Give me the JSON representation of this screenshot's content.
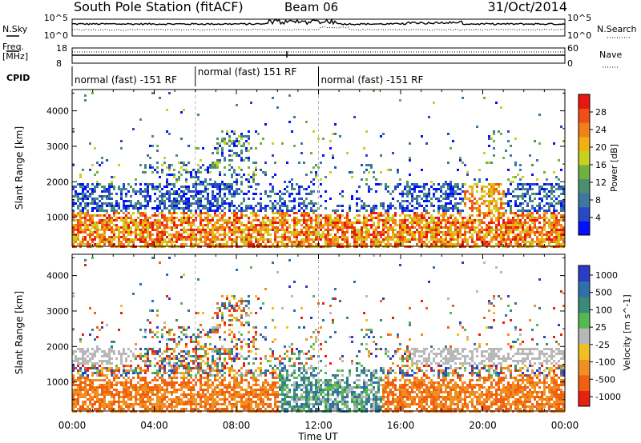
{
  "header": {
    "station": "South Pole Station (fitACF)",
    "beam": "Beam 06",
    "date": "31/Oct/2014"
  },
  "top_panels": {
    "nsky_label": "N.Sky",
    "nsky_ticks": [
      "10^5",
      "10^0"
    ],
    "nsearch_label": "N.Search",
    "nsearch_ticks": [
      "10^5",
      "10^0"
    ],
    "freq_label": "Freq.",
    "freq_unit": "[MHz]",
    "freq_ticks": [
      "18",
      "8"
    ],
    "nave_label": "Nave",
    "nave_ticks": [
      "60",
      "0"
    ],
    "cpid_label": "CPID",
    "cpid_segments": [
      {
        "label": "normal (fast) -151 RF",
        "start_h": 0,
        "end_h": 6
      },
      {
        "label": "normal (fast) 151 RF",
        "start_h": 6,
        "end_h": 12
      },
      {
        "label": "normal (fast) -151 RF",
        "start_h": 12,
        "end_h": 24
      }
    ]
  },
  "chart_data": [
    {
      "type": "heatmap",
      "name": "power",
      "xlabel": "",
      "ylabel": "Slant Range [km]",
      "xlim": [
        0,
        24
      ],
      "ylim": [
        180,
        4600
      ],
      "yticks": [
        "1000",
        "2000",
        "3000",
        "4000"
      ],
      "colorbar_label": "Power [dB]",
      "colorbar_ticks": [
        "4",
        "8",
        "12",
        "16",
        "20",
        "24",
        "28"
      ],
      "colorscale": [
        "#0010ff",
        "#2848c8",
        "#3c78a0",
        "#4a9070",
        "#70b040",
        "#c8d020",
        "#f0b010",
        "#f08018",
        "#f05018",
        "#e81810"
      ]
    },
    {
      "type": "heatmap",
      "name": "velocity",
      "xlabel": "Time UT",
      "ylabel": "Slant Range [km]",
      "xlim": [
        0,
        24
      ],
      "ylim": [
        180,
        4600
      ],
      "yticks": [
        "1000",
        "2000",
        "3000",
        "4000"
      ],
      "xticks": [
        "00:00",
        "04:00",
        "08:00",
        "12:00",
        "16:00",
        "20:00",
        "00:00"
      ],
      "colorbar_label": "Velocity [m s^-1]",
      "colorbar_ticks": [
        "1000",
        "500",
        "100",
        "25",
        "-25",
        "-100",
        "-500",
        "-1000"
      ],
      "colorscale": [
        "#2a3cc8",
        "#2f70a8",
        "#3a8a78",
        "#55b850",
        "#b8b8b8",
        "#f0c020",
        "#f09020",
        "#f06010",
        "#e82010"
      ]
    }
  ]
}
